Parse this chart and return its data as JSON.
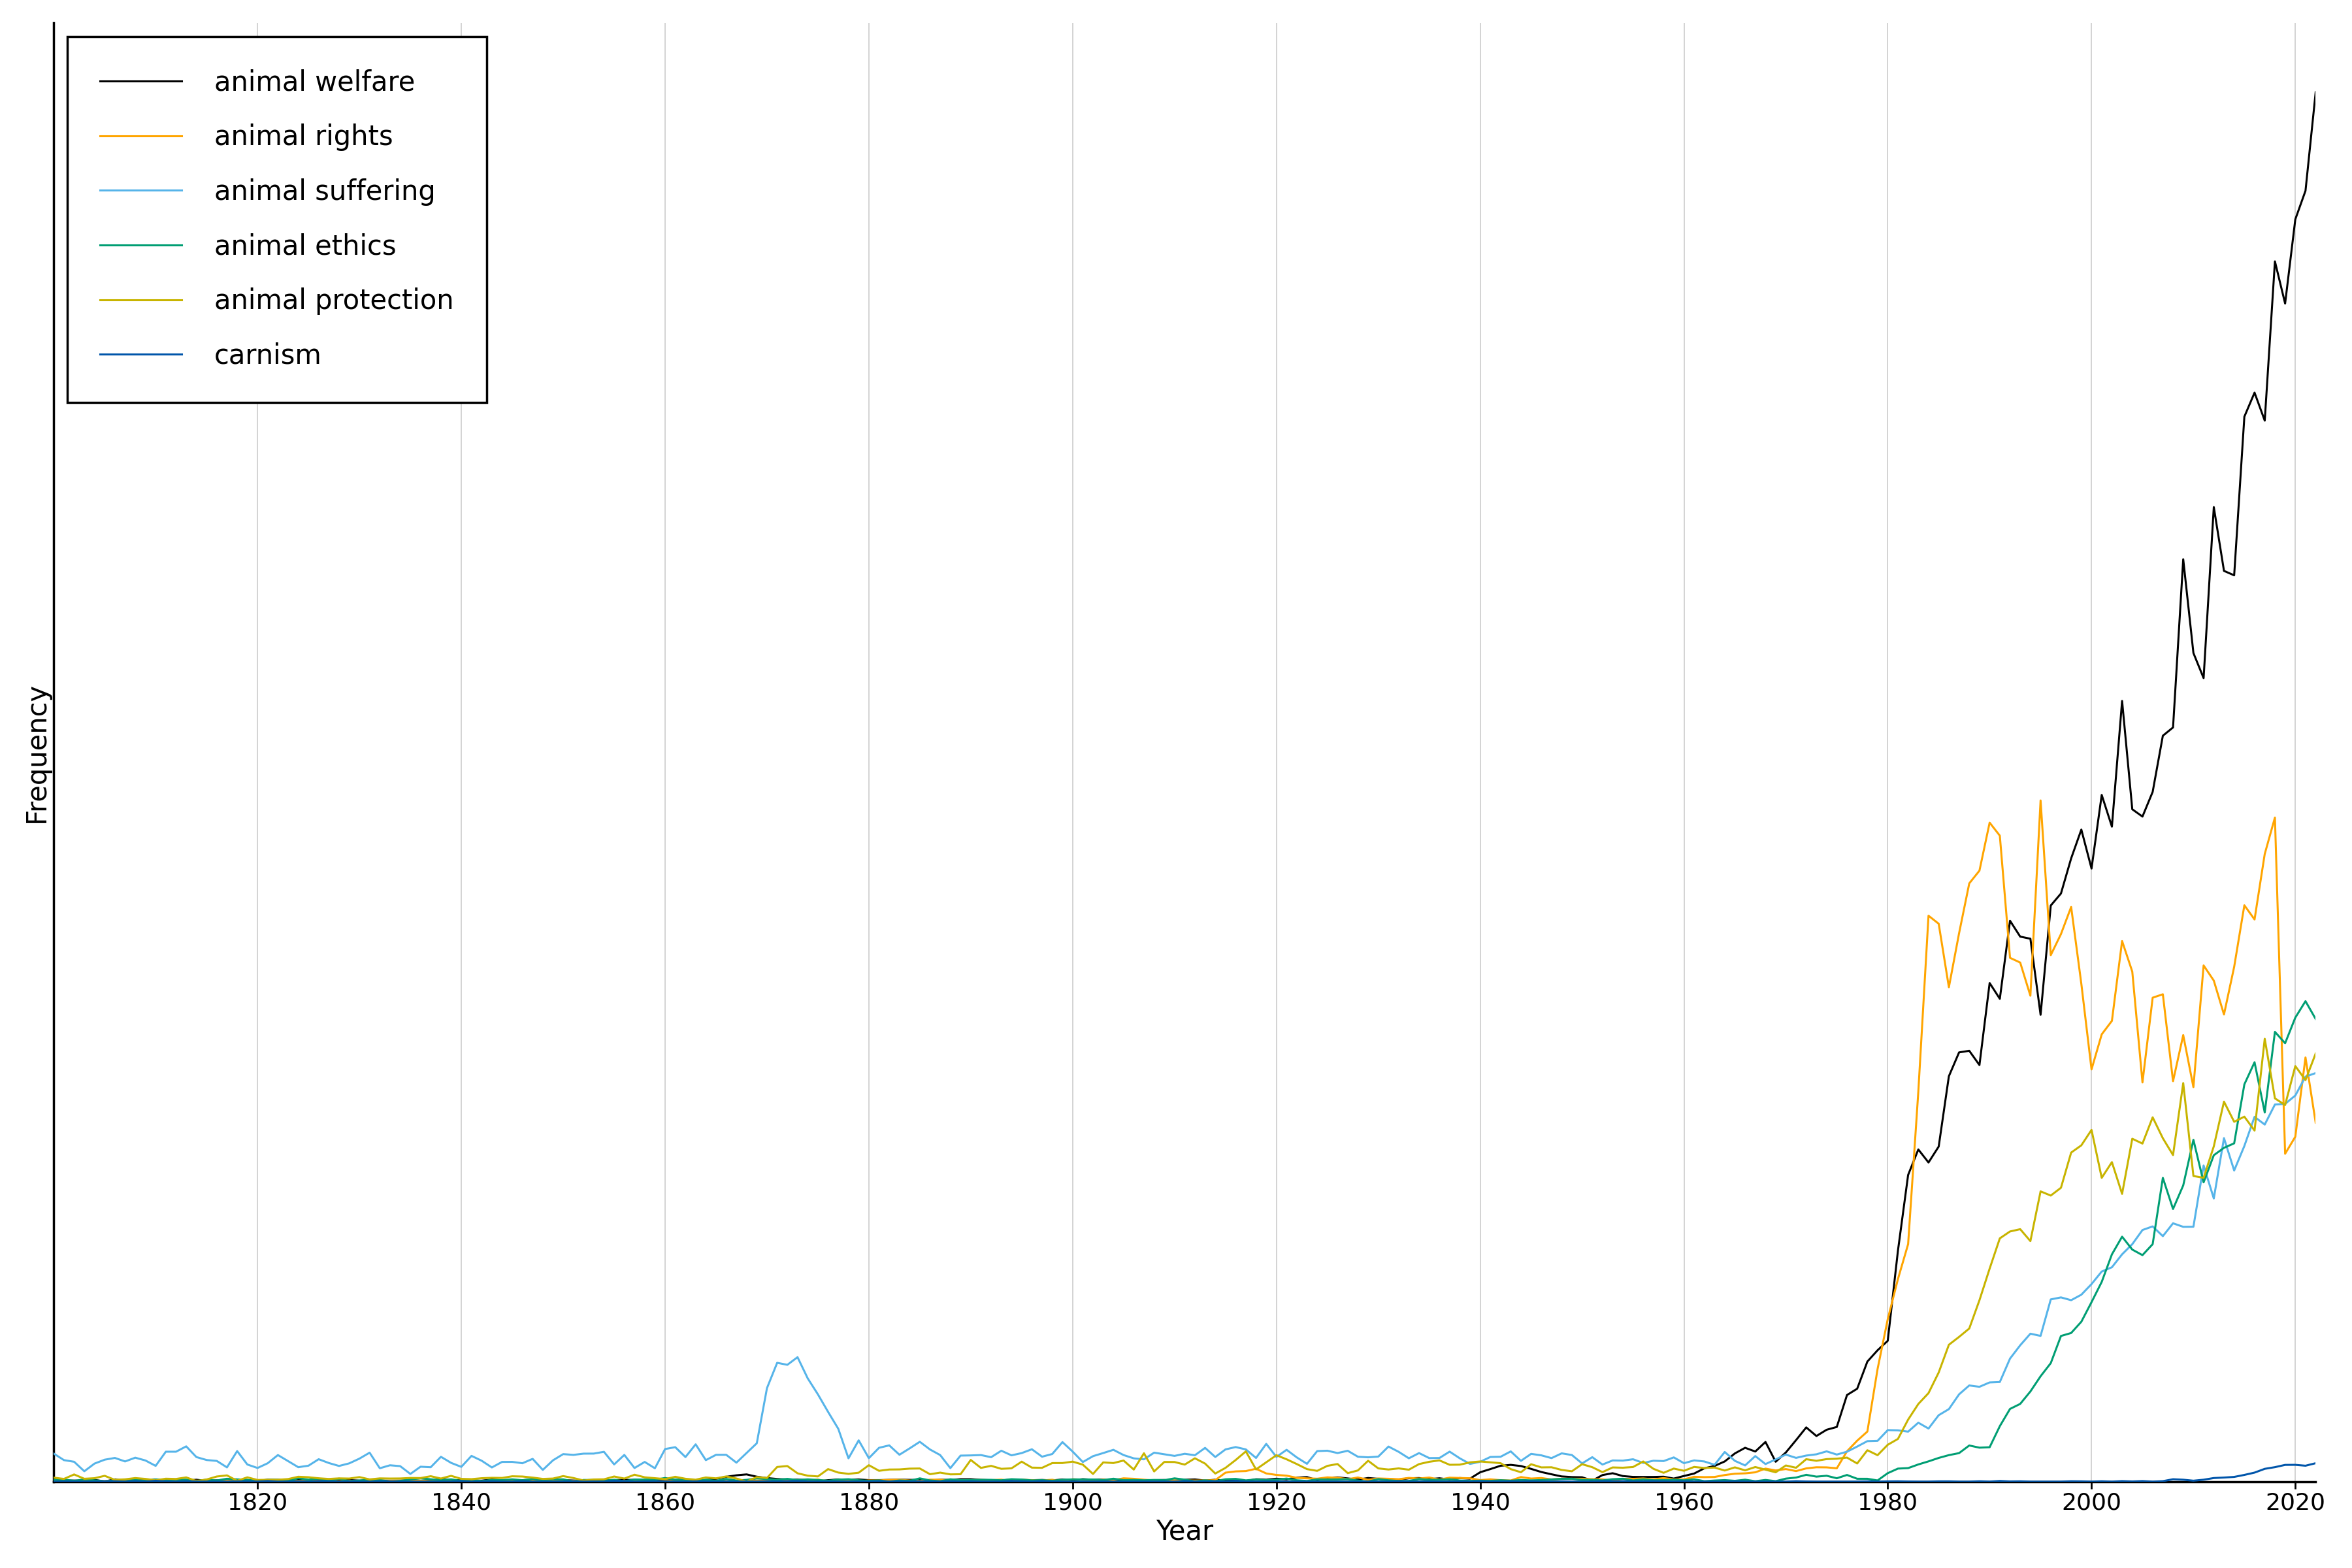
{
  "title": "",
  "xlabel": "Year",
  "ylabel": "Frequency",
  "xlim": [
    1800,
    2022
  ],
  "series": [
    {
      "label": "animal welfare",
      "color": "#000000",
      "lw": 2.2
    },
    {
      "label": "animal rights",
      "color": "#FFA500",
      "lw": 2.2
    },
    {
      "label": "animal suffering",
      "color": "#56B4E9",
      "lw": 2.2
    },
    {
      "label": "animal ethics",
      "color": "#009E73",
      "lw": 2.2
    },
    {
      "label": "animal protection",
      "color": "#C8B400",
      "lw": 2.2
    },
    {
      "label": "carnism",
      "color": "#0055AA",
      "lw": 2.2
    }
  ],
  "grid_color": "#cccccc",
  "background_color": "#ffffff",
  "legend_loc": "upper left",
  "fontsize": 30,
  "tick_fontsize": 26
}
